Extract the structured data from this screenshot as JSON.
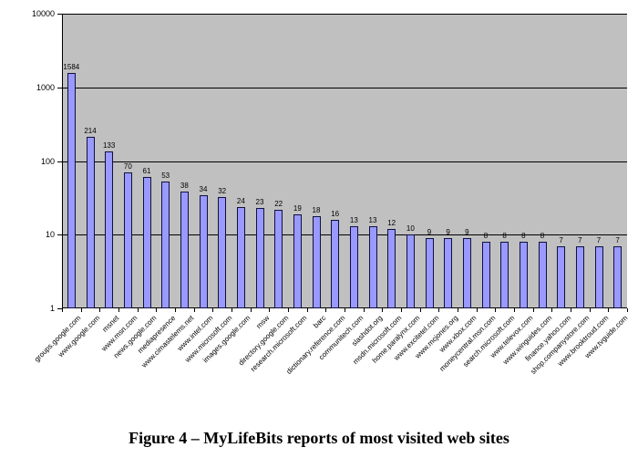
{
  "figure": {
    "caption": "Figure 4 – MyLifeBits reports of most visited web sites"
  },
  "chart_data": {
    "type": "bar",
    "title": "",
    "xlabel": "",
    "ylabel": "",
    "scale": "log",
    "ylim": [
      1,
      10000
    ],
    "y_ticks": [
      1,
      10,
      100,
      1000,
      10000
    ],
    "grid": true,
    "legend": false,
    "plot_bg_color": "#C0C0C0",
    "bar_fill_color": "#9999FF",
    "bar_border_color": "#101040",
    "categories": [
      "groups.google.com",
      "www.google.com",
      "msnet",
      "www.msn.com",
      "news.google.com",
      "mediapresence",
      "www.cimastelems.net",
      "www.intel.com",
      "www.microsoft.com",
      "images.google.com",
      "msw",
      "directory.google.com",
      "research.microsoft.com",
      "barc",
      "dictionary.reference.com",
      "communitech.com",
      "slashdot.org",
      "msdn.microsoft.com",
      "home.paralynx.com",
      "www.excitetel.com",
      "www.mcjones.org",
      "www.xbox.com",
      "moneycentral.msn.com",
      "search.microsoft.com",
      "www.televox.com",
      "www.winguides.com",
      "finance.yahoo.com",
      "shop.companystore.com",
      "www.brooktroud.com",
      "www.tvguide.com"
    ],
    "values": [
      1584,
      214,
      133,
      70,
      61,
      53,
      38,
      34,
      32,
      24,
      23,
      22,
      19,
      18,
      16,
      13,
      13,
      12,
      10,
      9,
      9,
      9,
      8,
      8,
      8,
      8,
      7,
      7,
      7,
      7
    ]
  }
}
